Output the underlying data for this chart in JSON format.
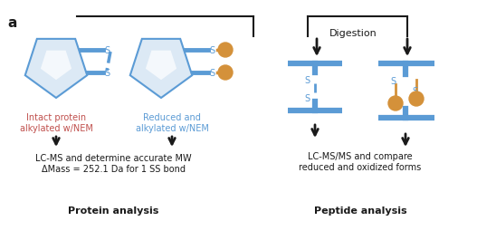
{
  "bg_color": "#ffffff",
  "blue_color": "#5b9bd5",
  "blue_light": "#b8cce4",
  "orange_color": "#d4913a",
  "red_text": "#c0504d",
  "blue_text": "#5b9bd5",
  "black": "#1a1a1a",
  "label_a": "a",
  "title_protein": "Protein analysis",
  "title_peptide": "Peptide analysis",
  "text_intact": "Intact protein\nalkylated w/NEM",
  "text_reduced": "Reduced and\nalkylated w/NEM",
  "text_lcms1": "LC-MS and determine accurate MW\nΔMass = 252.1 Da for 1 SS bond",
  "text_lcms2": "LC-MS/MS and compare\nreduced and oxidized forms",
  "text_digestion": "Digestion"
}
